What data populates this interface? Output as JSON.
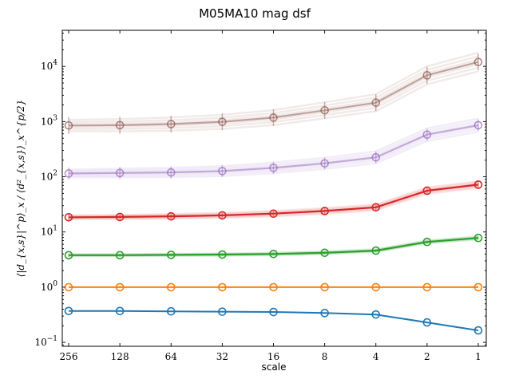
{
  "chart_data": {
    "type": "line",
    "title": "M05MA10 mag dsf",
    "xlabel": "scale",
    "ylabel": "⟨|d_{x,s}|^p⟩_x / ⟨d²_{x,s}⟩_x^{p/2}",
    "x_scale": "log2-reversed",
    "y_scale": "log",
    "x": [
      256,
      128,
      64,
      32,
      16,
      8,
      4,
      2,
      1
    ],
    "x_tick_labels": [
      "256",
      "128",
      "64",
      "32",
      "16",
      "8",
      "4",
      "2",
      "1"
    ],
    "y_tick_labels": [
      {
        "base": "10",
        "exp": "−1",
        "value": 0.1
      },
      {
        "base": "10",
        "exp": "0",
        "value": 1
      },
      {
        "base": "10",
        "exp": "1",
        "value": 10
      },
      {
        "base": "10",
        "exp": "2",
        "value": 100
      },
      {
        "base": "10",
        "exp": "3",
        "value": 1000
      },
      {
        "base": "10",
        "exp": "4",
        "value": 10000
      }
    ],
    "ylim": [
      0.085,
      45000
    ],
    "grid": false,
    "series": [
      {
        "color": "#1f77b4",
        "values": [
          0.37,
          0.37,
          0.365,
          0.36,
          0.355,
          0.34,
          0.32,
          0.23,
          0.165
        ],
        "spread": 0.0
      },
      {
        "color": "#ff7f0e",
        "values": [
          1.0,
          1.0,
          1.0,
          1.0,
          1.0,
          1.0,
          1.0,
          1.0,
          1.0
        ],
        "spread": 0.0
      },
      {
        "color": "#2ca02c",
        "values": [
          3.8,
          3.8,
          3.85,
          3.9,
          4.0,
          4.2,
          4.6,
          6.6,
          7.8
        ],
        "spread": 0.03
      },
      {
        "color": "#d62728",
        "values": [
          18.5,
          18.7,
          19.2,
          20.0,
          21.5,
          24.0,
          28.0,
          56.0,
          72.0
        ],
        "spread": 0.06
      },
      {
        "color": "#9467bd",
        "values": [
          115,
          117,
          120,
          127,
          145,
          175,
          225,
          580,
          860
        ],
        "spread": 0.12
      },
      {
        "color": "#8c564b",
        "values": [
          850,
          860,
          900,
          990,
          1180,
          1600,
          2200,
          6900,
          12000
        ],
        "spread": 0.17
      }
    ]
  }
}
